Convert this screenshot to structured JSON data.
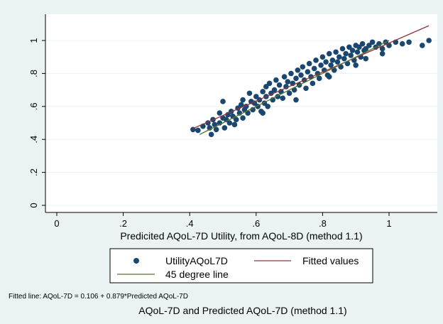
{
  "colors": {
    "background": "#eaf2f3",
    "plot_background": "#ffffff",
    "points": "#1a476f",
    "fitted": "#90353b",
    "degree45": "#55752f"
  },
  "chart_data": {
    "type": "scatter",
    "xlabel": "Predicited AQoL-7D Utility, from AQoL-8D (method 1.1)",
    "ylabel": "",
    "xlim": [
      0,
      1.12
    ],
    "ylim": [
      0,
      1.09
    ],
    "xticks": [
      0,
      0.2,
      0.4,
      0.6,
      0.8,
      1
    ],
    "xtick_labels": [
      "0",
      ".2",
      ".4",
      ".6",
      ".8",
      "1"
    ],
    "yticks": [
      0,
      0.2,
      0.4,
      0.6,
      0.8,
      1
    ],
    "ytick_labels": [
      "0",
      ".2",
      ".4",
      ".6",
      ".8",
      "1"
    ],
    "grid": "horizontal",
    "legend_position": "bottom",
    "series": [
      {
        "name": "UtilityAQoL7D",
        "kind": "scatter",
        "points": [
          [
            0.41,
            0.46
          ],
          [
            0.425,
            0.455
          ],
          [
            0.44,
            0.48
          ],
          [
            0.455,
            0.5
          ],
          [
            0.46,
            0.47
          ],
          [
            0.465,
            0.43
          ],
          [
            0.47,
            0.52
          ],
          [
            0.475,
            0.49
          ],
          [
            0.48,
            0.46
          ],
          [
            0.49,
            0.56
          ],
          [
            0.49,
            0.5
          ],
          [
            0.5,
            0.63
          ],
          [
            0.5,
            0.53
          ],
          [
            0.505,
            0.47
          ],
          [
            0.51,
            0.52
          ],
          [
            0.515,
            0.55
          ],
          [
            0.52,
            0.5
          ],
          [
            0.525,
            0.57
          ],
          [
            0.53,
            0.54
          ],
          [
            0.535,
            0.49
          ],
          [
            0.54,
            0.52
          ],
          [
            0.545,
            0.59
          ],
          [
            0.55,
            0.56
          ],
          [
            0.555,
            0.61
          ],
          [
            0.56,
            0.53
          ],
          [
            0.56,
            0.64
          ],
          [
            0.565,
            0.58
          ],
          [
            0.57,
            0.6
          ],
          [
            0.575,
            0.56
          ],
          [
            0.58,
            0.68
          ],
          [
            0.585,
            0.63
          ],
          [
            0.59,
            0.58
          ],
          [
            0.595,
            0.62
          ],
          [
            0.6,
            0.66
          ],
          [
            0.605,
            0.6
          ],
          [
            0.61,
            0.64
          ],
          [
            0.615,
            0.57
          ],
          [
            0.62,
            0.69
          ],
          [
            0.625,
            0.62
          ],
          [
            0.63,
            0.72
          ],
          [
            0.63,
            0.66
          ],
          [
            0.635,
            0.6
          ],
          [
            0.64,
            0.74
          ],
          [
            0.645,
            0.68
          ],
          [
            0.65,
            0.64
          ],
          [
            0.655,
            0.7
          ],
          [
            0.66,
            0.76
          ],
          [
            0.665,
            0.66
          ],
          [
            0.67,
            0.73
          ],
          [
            0.675,
            0.69
          ],
          [
            0.68,
            0.65
          ],
          [
            0.685,
            0.78
          ],
          [
            0.69,
            0.72
          ],
          [
            0.695,
            0.75
          ],
          [
            0.7,
            0.68
          ],
          [
            0.705,
            0.8
          ],
          [
            0.71,
            0.74
          ],
          [
            0.715,
            0.7
          ],
          [
            0.72,
            0.77
          ],
          [
            0.725,
            0.82
          ],
          [
            0.73,
            0.73
          ],
          [
            0.735,
            0.79
          ],
          [
            0.74,
            0.84
          ],
          [
            0.745,
            0.76
          ],
          [
            0.75,
            0.71
          ],
          [
            0.755,
            0.81
          ],
          [
            0.76,
            0.86
          ],
          [
            0.765,
            0.78
          ],
          [
            0.77,
            0.74
          ],
          [
            0.775,
            0.83
          ],
          [
            0.78,
            0.88
          ],
          [
            0.785,
            0.8
          ],
          [
            0.79,
            0.77
          ],
          [
            0.795,
            0.85
          ],
          [
            0.8,
            0.9
          ],
          [
            0.805,
            0.82
          ],
          [
            0.81,
            0.87
          ],
          [
            0.815,
            0.79
          ],
          [
            0.82,
            0.92
          ],
          [
            0.825,
            0.85
          ],
          [
            0.83,
            0.88
          ],
          [
            0.835,
            0.82
          ],
          [
            0.84,
            0.93
          ],
          [
            0.845,
            0.87
          ],
          [
            0.85,
            0.9
          ],
          [
            0.855,
            0.84
          ],
          [
            0.86,
            0.95
          ],
          [
            0.865,
            0.89
          ],
          [
            0.87,
            0.92
          ],
          [
            0.875,
            0.86
          ],
          [
            0.88,
            0.96
          ],
          [
            0.885,
            0.91
          ],
          [
            0.89,
            0.94
          ],
          [
            0.895,
            0.88
          ],
          [
            0.9,
            0.97
          ],
          [
            0.905,
            0.93
          ],
          [
            0.91,
            0.96
          ],
          [
            0.915,
            0.9
          ],
          [
            0.92,
            0.98
          ],
          [
            0.925,
            0.94
          ],
          [
            0.93,
            0.95
          ],
          [
            0.94,
            0.97
          ],
          [
            0.95,
            0.99
          ],
          [
            0.96,
            0.96
          ],
          [
            0.97,
            0.98
          ],
          [
            0.98,
            0.95
          ],
          [
            0.99,
            0.99
          ],
          [
            1.0,
            0.97
          ],
          [
            1.02,
            0.99
          ],
          [
            1.04,
            0.98
          ],
          [
            1.06,
            0.99
          ],
          [
            1.1,
            0.97
          ],
          [
            1.12,
            1.0
          ],
          [
            0.72,
            0.64
          ],
          [
            0.82,
            0.78
          ],
          [
            0.9,
            0.85
          ],
          [
            0.93,
            0.89
          ],
          [
            0.98,
            0.92
          ],
          [
            0.62,
            0.56
          ]
        ]
      },
      {
        "name": "Fitted values",
        "kind": "line",
        "x": [
          0.41,
          1.12
        ],
        "y": [
          0.466,
          1.09
        ]
      },
      {
        "name": "45 degree line",
        "kind": "line",
        "x": [
          0.43,
          1.0
        ],
        "y": [
          0.43,
          1.0
        ]
      }
    ],
    "annotations": {
      "note": "Fitted line: AQoL-7D = 0.106 + 0.879*Predicted AQoL-7D",
      "caption": "AQoL-7D and Predicted AQoL-7D (method 1.1)"
    }
  }
}
